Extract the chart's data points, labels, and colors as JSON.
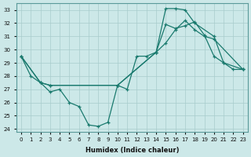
{
  "title": "",
  "xlabel": "Humidex (Indice chaleur)",
  "ylabel_ticks": [
    24,
    25,
    26,
    27,
    28,
    29,
    30,
    31,
    32,
    33
  ],
  "xlim": [
    -0.5,
    23.5
  ],
  "ylim": [
    23.8,
    33.5
  ],
  "bg_color": "#cce8e8",
  "grid_color": "#a8cccc",
  "line_color": "#1a7a6e",
  "line1_x": [
    0,
    1,
    2,
    3,
    4,
    5,
    6,
    7,
    8,
    9,
    10,
    11,
    12,
    13,
    14,
    15,
    16,
    17,
    18,
    19,
    20,
    21,
    22,
    23
  ],
  "line1_y": [
    29.5,
    28.0,
    27.5,
    26.8,
    27.0,
    26.0,
    25.7,
    24.3,
    24.2,
    24.5,
    27.3,
    27.0,
    29.5,
    29.5,
    29.8,
    31.9,
    31.6,
    31.8,
    32.1,
    31.1,
    29.5,
    29.0,
    28.5,
    28.5
  ],
  "line2_x": [
    0,
    2,
    3,
    10,
    14,
    15,
    16,
    17,
    18,
    20,
    21,
    23
  ],
  "line2_y": [
    29.5,
    27.5,
    27.3,
    27.3,
    29.8,
    33.1,
    33.1,
    33.0,
    32.0,
    31.0,
    29.0,
    28.5
  ],
  "line3_x": [
    0,
    2,
    3,
    10,
    14,
    15,
    16,
    17,
    18,
    19,
    20,
    23
  ],
  "line3_y": [
    29.5,
    27.5,
    27.3,
    27.3,
    29.8,
    30.5,
    31.5,
    32.2,
    31.5,
    31.0,
    30.8,
    28.5
  ]
}
